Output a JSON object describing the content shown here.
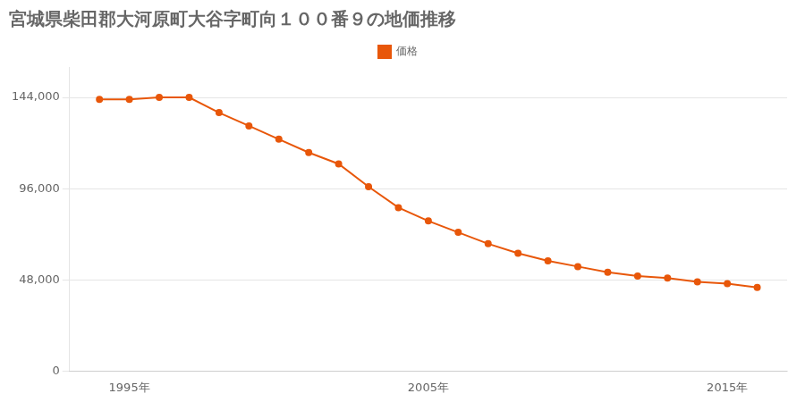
{
  "chart_data": {
    "type": "line",
    "title": "宮城県柴田郡大河原町大谷字町向１００番９の地価推移",
    "x": [
      1994,
      1995,
      1996,
      1997,
      1998,
      1999,
      2000,
      2001,
      2002,
      2003,
      2004,
      2005,
      2006,
      2007,
      2008,
      2009,
      2010,
      2011,
      2012,
      2013,
      2014,
      2015,
      2016
    ],
    "series": [
      {
        "name": "価格",
        "color": "#e8570a",
        "marker": "circle",
        "values": [
          143000,
          143000,
          144000,
          144000,
          136000,
          129000,
          122000,
          115000,
          109000,
          97000,
          86000,
          79000,
          73000,
          67000,
          62000,
          58000,
          55000,
          52000,
          50000,
          49000,
          47000,
          46000,
          44000
        ]
      }
    ],
    "xlim": [
      1993,
      2017
    ],
    "xticks": [
      {
        "value": 1995,
        "label": "1995年"
      },
      {
        "value": 2005,
        "label": "2005年"
      },
      {
        "value": 2015,
        "label": "2015年"
      }
    ],
    "ylim": [
      0,
      160000
    ],
    "yticks": [
      0,
      {
        "value": 48000,
        "label": "48,000"
      },
      {
        "value": 96000,
        "label": "96,000"
      },
      {
        "value": 144000,
        "label": "144,000"
      }
    ],
    "grid": "y",
    "legend": "top"
  }
}
